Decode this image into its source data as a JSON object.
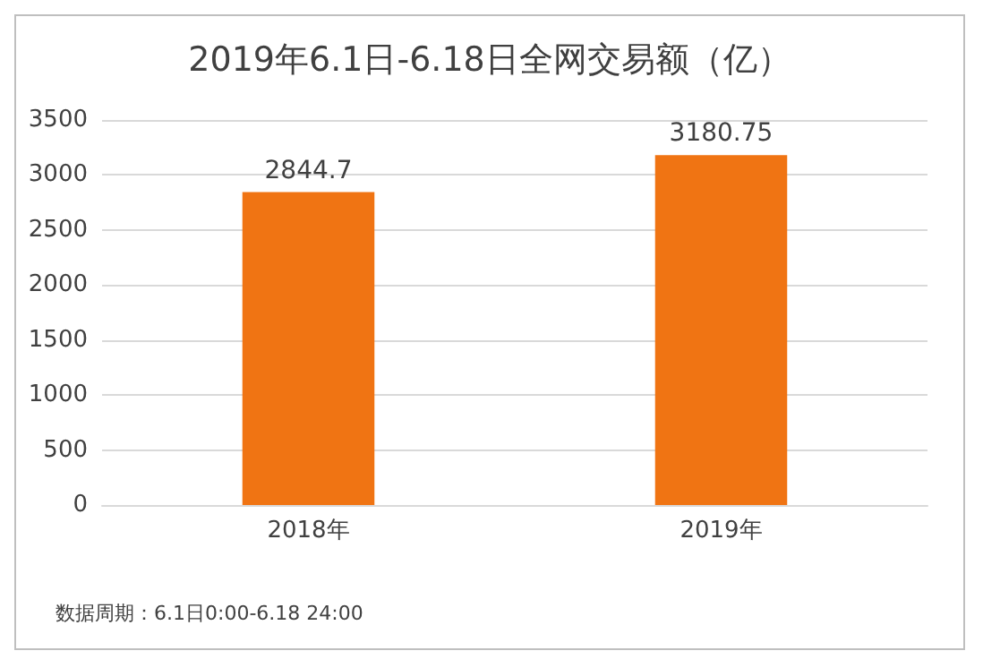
{
  "chart_data": {
    "type": "bar",
    "title": "2019年6.1日-6.18日全网交易额（亿）",
    "categories": [
      "2018年",
      "2019年"
    ],
    "values": [
      2844.7,
      3180.75
    ],
    "color": "#f07413",
    "ylim": [
      0,
      3500
    ],
    "yticks": [
      0,
      500,
      1000,
      1500,
      2000,
      2500,
      3000,
      3500
    ],
    "grid": "y",
    "data_labels": true,
    "annotations": [
      "数据周期：6.1日0:00-6.18 24:00"
    ]
  }
}
